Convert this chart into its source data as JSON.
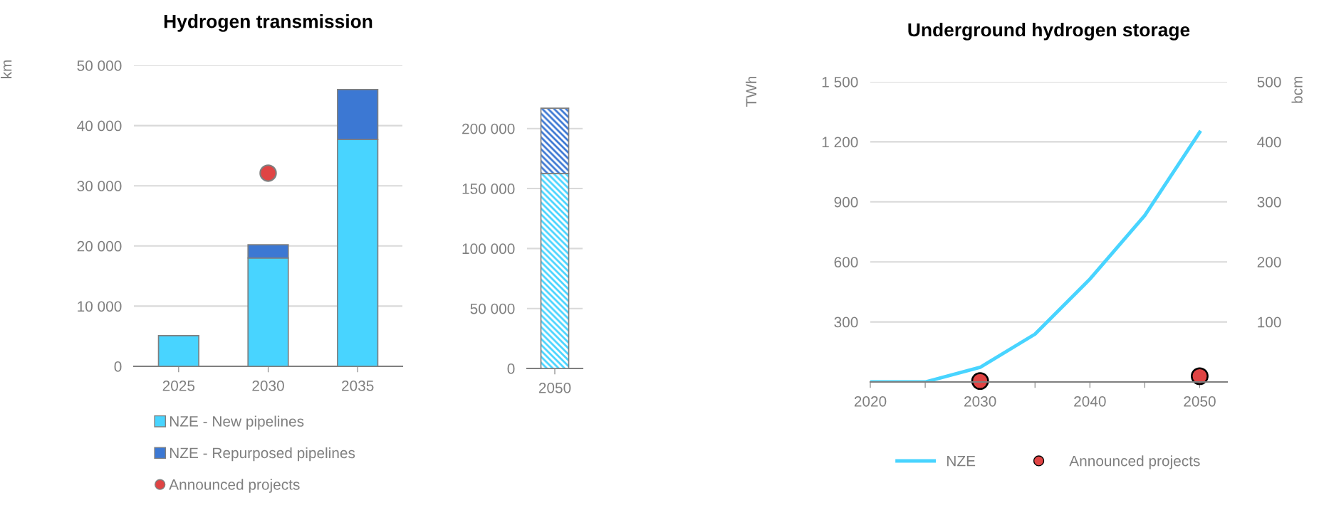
{
  "chart_data": [
    {
      "type": "bar",
      "title": "Hydrogen transmission",
      "ylabel": "km",
      "categories": [
        "2025",
        "2030",
        "2035"
      ],
      "stacked": true,
      "series": [
        {
          "name": "NZE - New pipelines",
          "color": "#48d4ff",
          "values": [
            5100,
            18000,
            37700
          ]
        },
        {
          "name": "NZE - Repurposed pipelines",
          "color": "#3c78d3",
          "values": [
            null,
            2200,
            8300
          ]
        },
        {
          "name": "Announced projects",
          "type": "scatter",
          "marker": "circle",
          "color": "#e04444",
          "values": [
            null,
            32100,
            null
          ]
        }
      ],
      "ylim": [
        0,
        50000
      ],
      "yticks": [
        0,
        {
          "value": 10000,
          "label": "10 000"
        },
        {
          "value": 20000,
          "label": "20 000"
        },
        {
          "value": 30000,
          "label": "30 000"
        },
        {
          "value": 40000,
          "label": "40 000"
        },
        {
          "value": 50000,
          "label": "50 000"
        }
      ],
      "grid": "y",
      "legend": "bottom"
    },
    {
      "type": "bar",
      "categories": [
        "2050"
      ],
      "stacked": true,
      "series": [
        {
          "color": "#48d4ff",
          "values": [
            162500
          ]
        },
        {
          "color": "#3c78d3",
          "values": [
            54500
          ]
        }
      ],
      "ylim": [
        0,
        220000
      ],
      "yticks": [
        0,
        {
          "value": 50000,
          "label": "50 000"
        },
        {
          "value": 100000,
          "label": "100 000"
        },
        {
          "value": 150000,
          "label": "150 000"
        },
        {
          "value": 200000,
          "label": "200 000"
        }
      ],
      "grid": "y"
    },
    {
      "type": "line",
      "title": "Underground hydrogen storage",
      "ylabel": "TWh",
      "y2label": "bcm",
      "series": [
        {
          "name": "NZE",
          "color": "#48d4ff",
          "x": [
            2020,
            2025,
            2030,
            2035,
            2040,
            2045,
            2050
          ],
          "values": [
            0,
            0,
            73,
            239,
            514,
            832,
            1248
          ]
        },
        {
          "name": "Announced projects",
          "type": "scatter",
          "marker": "circle",
          "color": "#e04444",
          "x": [
            2030,
            2050
          ],
          "values": [
            5,
            29
          ]
        }
      ],
      "xlim": [
        2020,
        2052.5
      ],
      "xticks": [
        2020,
        {
          "value": 2025,
          "label": null
        },
        2030,
        {
          "value": 2035,
          "label": null
        },
        2040,
        {
          "value": 2045,
          "label": null
        },
        2050
      ],
      "ylim": [
        0,
        1500
      ],
      "yticks": [
        {
          "value": 300,
          "label": "300"
        },
        {
          "value": 600,
          "label": "600"
        },
        {
          "value": 900,
          "label": "900"
        },
        {
          "value": 1200,
          "label": "1 200"
        },
        {
          "value": 1500,
          "label": "1 500"
        }
      ],
      "y2lim": [
        0,
        500
      ],
      "y2ticks": [
        100,
        200,
        300,
        400,
        500
      ],
      "grid": "y",
      "legend": "bottom"
    }
  ]
}
